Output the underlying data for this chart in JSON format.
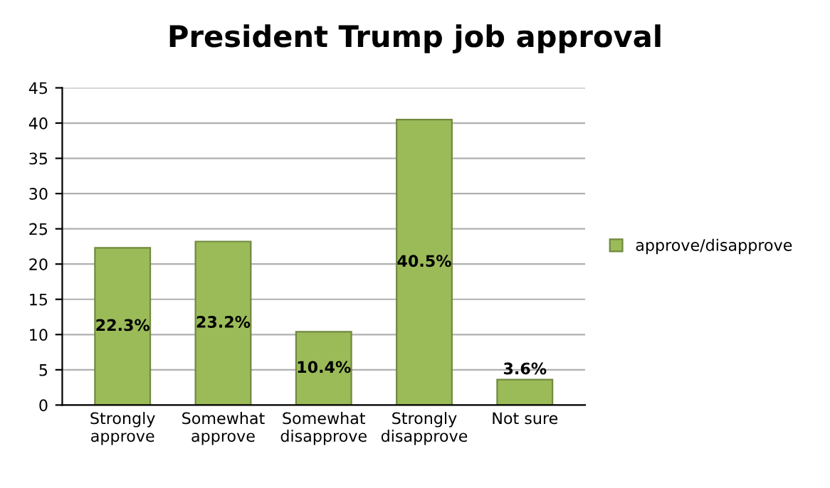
{
  "chart_data": {
    "type": "bar",
    "title": "President Trump job approval",
    "categories": [
      "Strongly approve",
      "Somewhat approve",
      "Somewhat disapprove",
      "Strongly disapprove",
      "Not sure"
    ],
    "series": [
      {
        "name": "approve/disapprove",
        "color": "#9bbb59",
        "values": [
          22.3,
          23.2,
          10.4,
          40.5,
          3.6
        ],
        "value_labels": [
          "22.3%",
          "23.2%",
          "10.4%",
          "40.5%",
          "3.6%"
        ]
      }
    ],
    "ylim": [
      0,
      45
    ],
    "yticks": [
      0,
      5,
      10,
      15,
      20,
      25,
      30,
      35,
      40,
      45
    ],
    "grid": "y",
    "legend": "right"
  }
}
